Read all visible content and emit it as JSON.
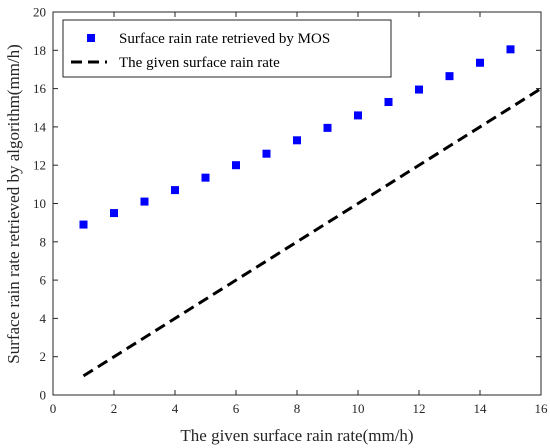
{
  "chart_data": {
    "type": "scatter",
    "xlabel": "The given surface rain rate(mm/h)",
    "ylabel": "Surface rain rate retrieved by algorithm(mm/h)",
    "xlim": [
      0,
      16
    ],
    "ylim": [
      0,
      20
    ],
    "xticks": [
      "0",
      "2",
      "4",
      "6",
      "8",
      "10",
      "12",
      "14",
      "16"
    ],
    "yticks": [
      "0",
      "2",
      "4",
      "6",
      "8",
      "10",
      "12",
      "14",
      "16",
      "18",
      "20"
    ],
    "grid": false,
    "legend_position": "top-left",
    "series": [
      {
        "name": "Surface rain rate retrieved by MOS",
        "style": "square-markers",
        "color": "#0000ff",
        "x": [
          1,
          2,
          3,
          4,
          5,
          6,
          7,
          8,
          9,
          10,
          11,
          12,
          13,
          14,
          15
        ],
        "y": [
          8.9,
          9.5,
          10.1,
          10.7,
          11.35,
          12.0,
          12.6,
          13.3,
          13.95,
          14.6,
          15.3,
          15.95,
          16.65,
          17.35,
          18.05
        ]
      },
      {
        "name": "The given surface rain rate",
        "style": "dashed-line",
        "color": "#000000",
        "x": [
          1,
          16
        ],
        "y": [
          1,
          16
        ]
      }
    ]
  }
}
